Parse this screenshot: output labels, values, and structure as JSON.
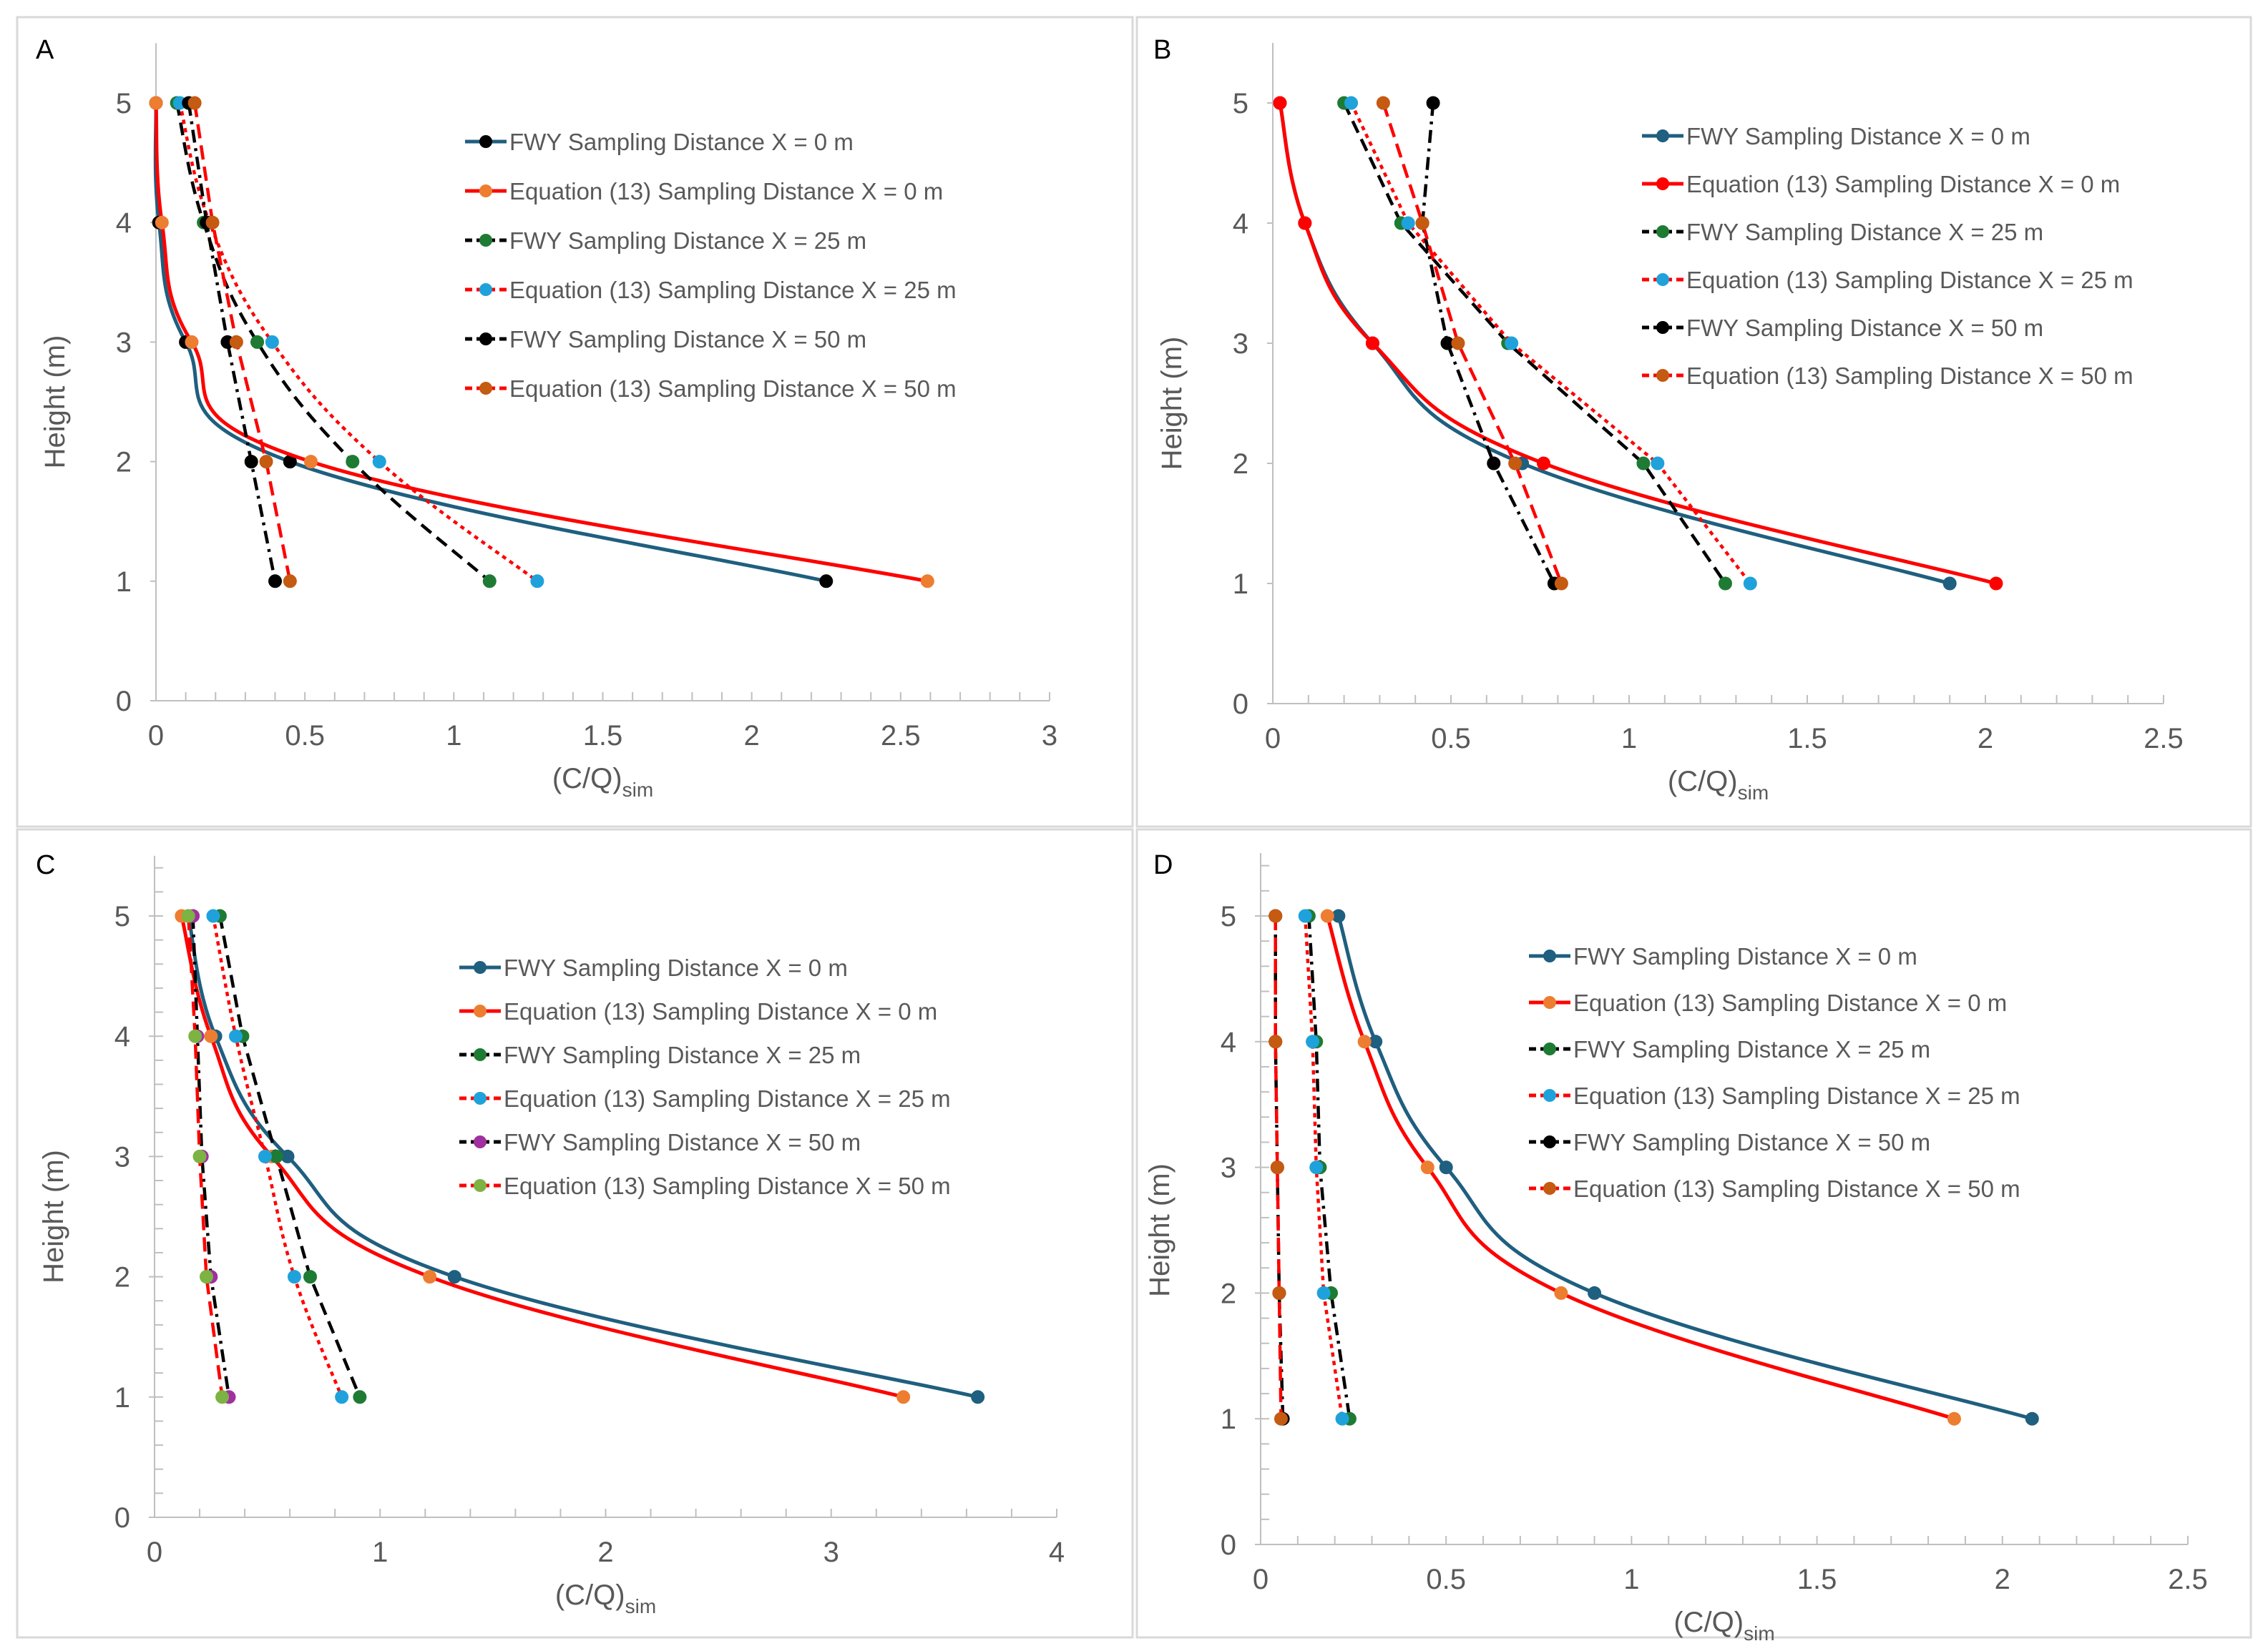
{
  "colors": {
    "teal": "#1F5F7F",
    "red": "#FF0000",
    "black": "#000000",
    "orange": "#ED7D31",
    "green": "#1E7B34",
    "cyan": "#1FA2DB",
    "brown": "#C55A11",
    "purple": "#A0309F",
    "lime": "#7CB342",
    "axis": "#BFBFBF",
    "frame": "#D9D9D9"
  },
  "chart_data": [
    {
      "panel": "A",
      "type": "line",
      "xlabel": "(C/Q)",
      "xlabel_sub": "sim",
      "ylabel": "Height (m)",
      "xlim": [
        0,
        3
      ],
      "ylim": [
        0,
        5.5
      ],
      "xticks": [
        "0",
        "0.5",
        "1",
        "1.5",
        "2",
        "2.5",
        "3"
      ],
      "xtick_values": [
        0,
        0.5,
        1,
        1.5,
        2,
        2.5,
        3
      ],
      "yticks": [
        "0",
        "1",
        "2",
        "3",
        "4",
        "5"
      ],
      "ytick_values": [
        0,
        1,
        2,
        3,
        4,
        5
      ],
      "legend_position": "top-right",
      "y": [
        5,
        4,
        3,
        2,
        1
      ],
      "series": [
        {
          "name": "FWY Sampling Distance X = 0 m",
          "values": [
            0.0,
            0.01,
            0.1,
            0.45,
            2.25
          ],
          "line": "#1F5F7F",
          "marker": "#000000",
          "dash": "solid",
          "smooth": true
        },
        {
          "name": "Equation (13) Sampling Distance X = 0 m",
          "values": [
            0.0,
            0.02,
            0.12,
            0.52,
            2.59
          ],
          "line": "#FF0000",
          "marker": "#ED7D31",
          "dash": "solid",
          "smooth": true
        },
        {
          "name": "FWY Sampling Distance X = 25 m",
          "values": [
            0.07,
            0.16,
            0.34,
            0.66,
            1.12
          ],
          "line": "#000000",
          "marker": "#1E7B34",
          "dash": "dash",
          "smooth": true
        },
        {
          "name": "Equation (13) Sampling Distance X = 25 m",
          "values": [
            0.08,
            0.18,
            0.39,
            0.75,
            1.28
          ],
          "line": "#FF0000",
          "marker": "#1FA2DB",
          "dash": "dot",
          "smooth": true
        },
        {
          "name": "FWY Sampling Distance X = 50 m",
          "values": [
            0.11,
            0.17,
            0.24,
            0.32,
            0.4
          ],
          "line": "#000000",
          "marker": "#000000",
          "dash": "dashdot",
          "smooth": false
        },
        {
          "name": "Equation (13) Sampling Distance X = 50 m",
          "values": [
            0.13,
            0.19,
            0.27,
            0.37,
            0.45
          ],
          "line": "#FF0000",
          "marker": "#C55A11",
          "dash": "dashed",
          "smooth": false
        }
      ]
    },
    {
      "panel": "B",
      "type": "line",
      "xlabel": "(C/Q)",
      "xlabel_sub": "sim",
      "ylabel": "Height (m)",
      "xlim": [
        0,
        2.5
      ],
      "ylim": [
        0,
        5.5
      ],
      "xticks": [
        "0",
        "0.5",
        "1",
        "1.5",
        "2",
        "2.5"
      ],
      "xtick_values": [
        0,
        0.5,
        1,
        1.5,
        2,
        2.5
      ],
      "yticks": [
        "0",
        "1",
        "2",
        "3",
        "4",
        "5"
      ],
      "ytick_values": [
        0,
        1,
        2,
        3,
        4,
        5
      ],
      "legend_position": "top-right",
      "y": [
        5,
        4,
        3,
        2,
        1
      ],
      "series": [
        {
          "name": "FWY Sampling Distance X = 0 m",
          "values": [
            0.02,
            0.09,
            0.28,
            0.7,
            1.9
          ],
          "line": "#1F5F7F",
          "marker": "#1F5F7F",
          "dash": "solid",
          "smooth": true
        },
        {
          "name": "Equation (13) Sampling Distance X = 0 m",
          "values": [
            0.02,
            0.09,
            0.28,
            0.76,
            2.03
          ],
          "line": "#FF0000",
          "marker": "#FF0000",
          "dash": "solid",
          "smooth": true
        },
        {
          "name": "FWY Sampling Distance X = 25 m",
          "values": [
            0.2,
            0.36,
            0.66,
            1.04,
            1.27
          ],
          "line": "#000000",
          "marker": "#1E7B34",
          "dash": "dash",
          "smooth": false
        },
        {
          "name": "Equation (13) Sampling Distance X = 25 m",
          "values": [
            0.22,
            0.38,
            0.67,
            1.08,
            1.34
          ],
          "line": "#FF0000",
          "marker": "#1FA2DB",
          "dash": "dot",
          "smooth": false
        },
        {
          "name": "FWY Sampling Distance X = 50 m",
          "values": [
            0.45,
            0.42,
            0.49,
            0.62,
            0.79
          ],
          "line": "#000000",
          "marker": "#000000",
          "dash": "dashdot",
          "smooth": false
        },
        {
          "name": "Equation (13) Sampling Distance X = 50 m",
          "values": [
            0.31,
            0.42,
            0.52,
            0.68,
            0.81
          ],
          "line": "#FF0000",
          "marker": "#C55A11",
          "dash": "dashed",
          "smooth": false
        }
      ]
    },
    {
      "panel": "C",
      "type": "line",
      "xlabel": "(C/Q)",
      "xlabel_sub": "sim",
      "ylabel": "Height (m)",
      "xlim": [
        0,
        4
      ],
      "ylim": [
        0,
        5.5
      ],
      "xticks": [
        "0",
        "1",
        "2",
        "3",
        "4"
      ],
      "xtick_values": [
        0,
        1,
        2,
        3,
        4
      ],
      "yticks": [
        "0",
        "1",
        "2",
        "3",
        "4",
        "5"
      ],
      "ytick_values": [
        0,
        1,
        2,
        3,
        4,
        5
      ],
      "legend_position": "top-right",
      "y": [
        5,
        4,
        3,
        2,
        1
      ],
      "series": [
        {
          "name": "FWY Sampling Distance X = 0 m",
          "values": [
            0.15,
            0.27,
            0.59,
            1.33,
            3.65
          ],
          "line": "#1F5F7F",
          "marker": "#1F5F7F",
          "dash": "solid",
          "smooth": true
        },
        {
          "name": "Equation (13) Sampling Distance X = 0 m",
          "values": [
            0.12,
            0.25,
            0.52,
            1.22,
            3.32
          ],
          "line": "#FF0000",
          "marker": "#ED7D31",
          "dash": "solid",
          "smooth": true
        },
        {
          "name": "FWY Sampling Distance X = 25 m",
          "values": [
            0.29,
            0.39,
            0.54,
            0.69,
            0.91
          ],
          "line": "#000000",
          "marker": "#1E7B34",
          "dash": "dash",
          "smooth": false
        },
        {
          "name": "Equation (13) Sampling Distance X = 25 m",
          "values": [
            0.26,
            0.36,
            0.49,
            0.62,
            0.83
          ],
          "line": "#FF0000",
          "marker": "#1FA2DB",
          "dash": "dot",
          "smooth": true
        },
        {
          "name": "FWY Sampling Distance X = 50 m",
          "values": [
            0.17,
            0.19,
            0.21,
            0.25,
            0.33
          ],
          "line": "#000000",
          "marker": "#A0309F",
          "dash": "dashdot",
          "smooth": false
        },
        {
          "name": "Equation (13) Sampling Distance X = 50 m",
          "values": [
            0.15,
            0.18,
            0.2,
            0.23,
            0.3
          ],
          "line": "#FF0000",
          "marker": "#7CB342",
          "dash": "dashed",
          "smooth": false
        }
      ]
    },
    {
      "panel": "D",
      "type": "line",
      "xlabel": "(C/Q)",
      "xlabel_sub": "sim",
      "ylabel": "Height (m)",
      "xlim": [
        0,
        2.5
      ],
      "ylim": [
        0,
        5.5
      ],
      "xticks": [
        "0",
        "0.5",
        "1",
        "1.5",
        "2",
        "2.5"
      ],
      "xtick_values": [
        0,
        0.5,
        1,
        1.5,
        2,
        2.5
      ],
      "yticks": [
        "0",
        "1",
        "2",
        "3",
        "4",
        "5"
      ],
      "ytick_values": [
        0,
        1,
        2,
        3,
        4,
        5
      ],
      "legend_position": "top-right",
      "y": [
        5,
        4,
        3,
        2,
        1
      ],
      "series": [
        {
          "name": "FWY Sampling Distance X = 0 m",
          "values": [
            0.21,
            0.31,
            0.5,
            0.9,
            2.08
          ],
          "line": "#1F5F7F",
          "marker": "#1F5F7F",
          "dash": "solid",
          "smooth": true
        },
        {
          "name": "Equation (13) Sampling Distance X = 0 m",
          "values": [
            0.18,
            0.28,
            0.45,
            0.81,
            1.87
          ],
          "line": "#FF0000",
          "marker": "#ED7D31",
          "dash": "solid",
          "smooth": true
        },
        {
          "name": "FWY Sampling Distance X = 25 m",
          "values": [
            0.13,
            0.15,
            0.16,
            0.19,
            0.24
          ],
          "line": "#000000",
          "marker": "#1E7B34",
          "dash": "dashdot",
          "smooth": false
        },
        {
          "name": "Equation (13) Sampling Distance X = 25 m",
          "values": [
            0.12,
            0.14,
            0.15,
            0.17,
            0.22
          ],
          "line": "#FF0000",
          "marker": "#1FA2DB",
          "dash": "dot",
          "smooth": false
        },
        {
          "name": "FWY Sampling Distance X = 50 m",
          "values": [
            0.04,
            0.04,
            0.045,
            0.05,
            0.06
          ],
          "line": "#000000",
          "marker": "#000000",
          "dash": "dashdot",
          "smooth": false
        },
        {
          "name": "Equation (13) Sampling Distance X = 50 m",
          "values": [
            0.04,
            0.04,
            0.045,
            0.05,
            0.055
          ],
          "line": "#FF0000",
          "marker": "#C55A11",
          "dash": "dashed",
          "smooth": false
        }
      ]
    }
  ]
}
